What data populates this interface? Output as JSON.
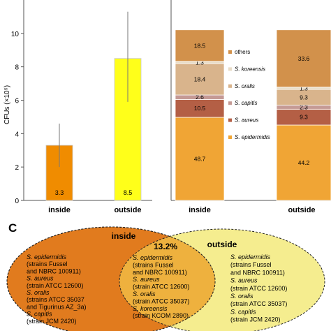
{
  "colors": {
    "inside_bar": "#f08c00",
    "outside_bar": "#ffff1a",
    "others": "#d2914b",
    "koreensis": "#e8ddc8",
    "oralis": "#d9b48c",
    "capitis": "#c59a95",
    "aureus": "#b45f45",
    "epidermidis": "#f0a535",
    "inside_circle": "#e17b1e",
    "outside_circle": "#f5ed8f",
    "overlap": "#eeb13e"
  },
  "chart_data": [
    {
      "type": "bar",
      "ylabel": "CFUs (×10⁵)",
      "ylim": [
        0,
        12
      ],
      "yticks": [
        0,
        2,
        4,
        6,
        8,
        10
      ],
      "categories": [
        "inside",
        "outside"
      ],
      "values": [
        3.3,
        8.5
      ],
      "value_labels": [
        "3.3",
        "8.5"
      ],
      "error_bars": [
        [
          2.0,
          4.6
        ],
        [
          5.9,
          11.3
        ]
      ]
    },
    {
      "type": "bar",
      "stacked": true,
      "categories": [
        "inside",
        "outside"
      ],
      "series": [
        {
          "name": "S. epidermidis",
          "key": "epidermidis",
          "values": [
            48.7,
            44.2
          ],
          "labels": [
            "48.7",
            "44.2"
          ]
        },
        {
          "name": "S. aureus",
          "key": "aureus",
          "values": [
            10.5,
            9.3
          ],
          "labels": [
            "10.5",
            "9.3"
          ]
        },
        {
          "name": "S. capitis",
          "key": "capitis",
          "values": [
            2.6,
            2.3
          ],
          "labels": [
            "2.6",
            "2.3"
          ]
        },
        {
          "name": "S. oralis",
          "key": "oralis",
          "values": [
            18.4,
            9.3
          ],
          "labels": [
            "18.4",
            "9.3"
          ]
        },
        {
          "name": "S. koreensis",
          "key": "koreensis",
          "values": [
            1.3,
            1.3
          ],
          "labels": [
            "1.3",
            "1.3"
          ]
        },
        {
          "name": "others",
          "key": "others",
          "values": [
            18.5,
            33.6
          ],
          "labels": [
            "18.5",
            "33.6"
          ]
        }
      ],
      "legend_order": [
        "others",
        "koreensis",
        "oralis",
        "capitis",
        "aureus",
        "epidermidis"
      ]
    }
  ],
  "venn": {
    "panel_label": "C",
    "inside_title": "inside",
    "outside_title": "outside",
    "overlap_pct": "13.2%",
    "inside_only": [
      {
        "t": "S. epidermidis",
        "i": true
      },
      {
        "t": "(strains Fussel",
        "i": false
      },
      {
        "t": "and NBRC 100911)",
        "i": false
      },
      {
        "t": "S. aureus",
        "i": true
      },
      {
        "t": "(strain ATCC 12600)",
        "i": false
      },
      {
        "t": "S. oralis",
        "i": true
      },
      {
        "t": "(strains ATCC 35037",
        "i": false
      },
      {
        "t": "and Tigurinus AZ_3a)",
        "i": false
      },
      {
        "t": "S. capitis",
        "i": true
      },
      {
        "t": "(strain JCM 2420)",
        "i": false
      }
    ],
    "shared": [
      {
        "t": "S. epidermidis",
        "i": true
      },
      {
        "t": "(strains Fussel",
        "i": false
      },
      {
        "t": "and NBRC 100911)",
        "i": false
      },
      {
        "t": "S. aureus",
        "i": true
      },
      {
        "t": "(strain ATCC 12600)",
        "i": false
      },
      {
        "t": "S. oralis",
        "i": true
      },
      {
        "t": "(strain ATCC 35037)",
        "i": false
      },
      {
        "t": "S. koreensis",
        "i": true
      },
      {
        "t": "(strain KCOM 2890)",
        "i": false
      }
    ],
    "outside_only": [
      {
        "t": "S. epidermidis",
        "i": true
      },
      {
        "t": "(strains Fussel",
        "i": false
      },
      {
        "t": "and NBRC 100911)",
        "i": false
      },
      {
        "t": "S. aureus",
        "i": true
      },
      {
        "t": "(strain ATCC 12600)",
        "i": false
      },
      {
        "t": "S. oralis",
        "i": true
      },
      {
        "t": "(strain ATCC 35037)",
        "i": false
      },
      {
        "t": "S. capitis",
        "i": true
      },
      {
        "t": "(strain JCM 2420)",
        "i": false
      }
    ]
  }
}
